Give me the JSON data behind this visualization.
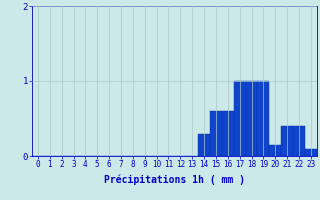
{
  "hours": [
    0,
    1,
    2,
    3,
    4,
    5,
    6,
    7,
    8,
    9,
    10,
    11,
    12,
    13,
    14,
    15,
    16,
    17,
    18,
    19,
    20,
    21,
    22,
    23
  ],
  "values": [
    0,
    0,
    0,
    0,
    0,
    0,
    0,
    0,
    0,
    0,
    0,
    0,
    0,
    0,
    0.3,
    0.6,
    0.6,
    1.0,
    1.0,
    1.0,
    0.15,
    0.4,
    0.4,
    0.1
  ],
  "bar_color": "#1144cc",
  "bar_edge_color": "#0033aa",
  "background_color": "#cce8e8",
  "grid_color": "#aac8c8",
  "axis_color": "#0000cc",
  "xlabel": "Précipitations 1h ( mm )",
  "xlabel_fontsize": 7,
  "tick_fontsize": 5.5,
  "ylim": [
    0,
    2
  ],
  "yticks": [
    0,
    1,
    2
  ],
  "xlim": [
    -0.5,
    23.5
  ],
  "figw": 3.2,
  "figh": 2.0
}
